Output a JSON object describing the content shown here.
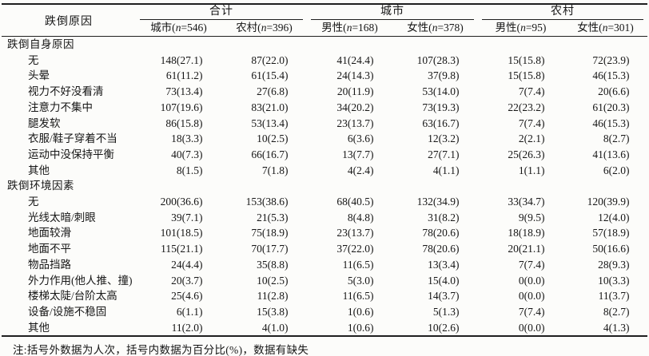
{
  "table": {
    "col1_header": "跌倒原因",
    "groups": [
      {
        "label": "合计",
        "cols": [
          "城市(n=546)",
          "农村(n=396)"
        ]
      },
      {
        "label": "城市",
        "cols": [
          "男性(n=168)",
          "女性(n=378)"
        ]
      },
      {
        "label": "农村",
        "cols": [
          "男性(n=95)",
          "女性(n=301)"
        ]
      }
    ],
    "sections": [
      {
        "title": "跌倒自身原因",
        "rows": [
          {
            "label": "无",
            "values": [
              "148(27.1)",
              "87(22.0)",
              "41(24.4)",
              "107(28.3)",
              "15(15.8)",
              "72(23.9)"
            ]
          },
          {
            "label": "头晕",
            "values": [
              "61(11.2)",
              "61(15.4)",
              "24(14.3)",
              "37(9.8)",
              "15(15.8)",
              "46(15.3)"
            ]
          },
          {
            "label": "视力不好没看清",
            "values": [
              "73(13.4)",
              "27(6.8)",
              "20(11.9)",
              "53(14.0)",
              "7(7.4)",
              "20(6.6)"
            ]
          },
          {
            "label": "注意力不集中",
            "values": [
              "107(19.6)",
              "83(21.0)",
              "34(20.2)",
              "73(19.3)",
              "22(23.2)",
              "61(20.3)"
            ]
          },
          {
            "label": "腿发软",
            "values": [
              "86(15.8)",
              "53(13.4)",
              "23(13.7)",
              "63(16.7)",
              "7(7.4)",
              "46(15.3)"
            ]
          },
          {
            "label": "衣服/鞋子穿着不当",
            "values": [
              "18(3.3)",
              "10(2.5)",
              "6(3.6)",
              "12(3.2)",
              "2(2.1)",
              "8(2.7)"
            ]
          },
          {
            "label": "运动中没保持平衡",
            "values": [
              "40(7.3)",
              "66(16.7)",
              "13(7.7)",
              "27(7.1)",
              "25(26.3)",
              "41(13.6)"
            ]
          },
          {
            "label": "其他",
            "values": [
              "8(1.5)",
              "7(1.8)",
              "4(2.4)",
              "4(1.1)",
              "1(1.1)",
              "6(2.0)"
            ]
          }
        ]
      },
      {
        "title": "跌倒环境因素",
        "rows": [
          {
            "label": "无",
            "values": [
              "200(36.6)",
              "153(38.6)",
              "68(40.5)",
              "132(34.9)",
              "33(34.7)",
              "120(39.9)"
            ]
          },
          {
            "label": "光线太暗/刺眼",
            "values": [
              "39(7.1)",
              "21(5.3)",
              "8(4.8)",
              "31(8.2)",
              "9(9.5)",
              "12(4.0)"
            ]
          },
          {
            "label": "地面较滑",
            "values": [
              "101(18.5)",
              "75(18.9)",
              "23(13.7)",
              "78(20.6)",
              "18(18.9)",
              "57(18.9)"
            ]
          },
          {
            "label": "地面不平",
            "values": [
              "115(21.1)",
              "70(17.7)",
              "37(22.0)",
              "78(20.6)",
              "20(21.1)",
              "50(16.6)"
            ]
          },
          {
            "label": "物品挡路",
            "values": [
              "24(4.4)",
              "35(8.8)",
              "11(6.5)",
              "13(3.4)",
              "7(7.4)",
              "28(9.3)"
            ]
          },
          {
            "label": "外力作用(他人推、撞)",
            "values": [
              "20(3.7)",
              "10(2.5)",
              "5(3.0)",
              "15(4.0)",
              "0(0.0)",
              "10(3.3)"
            ]
          },
          {
            "label": "楼梯太陡/台阶太高",
            "values": [
              "25(4.6)",
              "11(2.8)",
              "11(6.5)",
              "14(3.7)",
              "0(0.0)",
              "11(3.7)"
            ]
          },
          {
            "label": "设备/设施不稳固",
            "values": [
              "6(1.1)",
              "15(3.8)",
              "1(0.6)",
              "5(1.3)",
              "7(7.4)",
              "8(2.7)"
            ]
          },
          {
            "label": "其他",
            "values": [
              "11(2.0)",
              "4(1.0)",
              "1(0.6)",
              "10(2.6)",
              "0(0.0)",
              "4(1.3)"
            ]
          }
        ]
      }
    ],
    "note": "注:括号外数据为人次，括号内数据为百分比(%)，数据有缺失"
  }
}
